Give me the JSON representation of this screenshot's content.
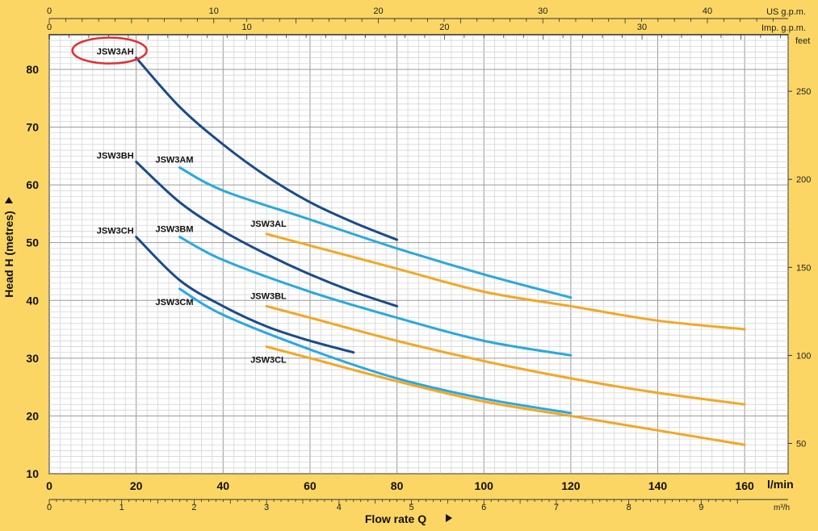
{
  "chart_data": {
    "type": "line",
    "title": "",
    "xlabel": "Flow rate Q",
    "ylabel": "Head H (metres)",
    "x_unit": "l/min",
    "xlim": [
      0,
      170
    ],
    "ylim": [
      10,
      86
    ],
    "x_ticks": [
      "0",
      "20",
      "40",
      "60",
      "80",
      "100",
      "120",
      "140",
      "160"
    ],
    "y_ticks": [
      "10",
      "20",
      "30",
      "40",
      "50",
      "60",
      "70",
      "80"
    ],
    "secondary_axes": {
      "us_gpm": {
        "label": "US g.p.m.",
        "ticks": [
          "0",
          "10",
          "20",
          "30",
          "40"
        ]
      },
      "imp_gpm": {
        "label": "Imp. g.p.m.",
        "ticks": [
          "0",
          "10",
          "20",
          "30"
        ]
      },
      "feet": {
        "label": "feet",
        "ticks": [
          "50",
          "100",
          "150",
          "200",
          "250"
        ]
      },
      "m3h": {
        "label": "m³/h",
        "ticks": [
          "0",
          "1",
          "2",
          "3",
          "4",
          "5",
          "6",
          "7",
          "8",
          "9"
        ]
      }
    },
    "grid": true,
    "colors": {
      "dark": "#1a4a8c",
      "light": "#29a8e0",
      "orange": "#f5a623",
      "highlight": "#e03030",
      "background": "#fbd664"
    },
    "series": [
      {
        "name": "JSW3AH",
        "color": "dark",
        "x": [
          20,
          30,
          40,
          50,
          60,
          70,
          80
        ],
        "y": [
          82,
          73.5,
          67,
          61.5,
          57,
          53.5,
          50.5
        ]
      },
      {
        "name": "JSW3BH",
        "color": "dark",
        "x": [
          20,
          30,
          40,
          50,
          60,
          70,
          80
        ],
        "y": [
          64,
          57,
          52,
          48,
          44.5,
          41.5,
          39
        ]
      },
      {
        "name": "JSW3CH",
        "color": "dark",
        "x": [
          20,
          30,
          40,
          50,
          60,
          70
        ],
        "y": [
          51,
          43.5,
          39,
          35.5,
          33,
          31
        ]
      },
      {
        "name": "JSW3AM",
        "color": "light",
        "x": [
          30,
          40,
          60,
          80,
          100,
          120
        ],
        "y": [
          63,
          59,
          54,
          49,
          44.5,
          40.5
        ]
      },
      {
        "name": "JSW3BM",
        "color": "light",
        "x": [
          30,
          40,
          60,
          80,
          100,
          120
        ],
        "y": [
          51,
          47,
          41.5,
          37,
          33,
          30.5
        ]
      },
      {
        "name": "JSW3CM",
        "color": "light",
        "x": [
          30,
          40,
          60,
          80,
          100,
          120
        ],
        "y": [
          42,
          37.5,
          31.5,
          26.5,
          23,
          20.5
        ]
      },
      {
        "name": "JSW3AL",
        "color": "orange",
        "x": [
          50,
          60,
          80,
          100,
          120,
          140,
          160
        ],
        "y": [
          51.5,
          49.5,
          45.5,
          41.5,
          39,
          36.5,
          35
        ]
      },
      {
        "name": "JSW3BL",
        "color": "orange",
        "x": [
          50,
          60,
          80,
          100,
          120,
          140,
          160
        ],
        "y": [
          39,
          37,
          33,
          29.5,
          26.5,
          24,
          22
        ]
      },
      {
        "name": "JSW3CL",
        "color": "orange",
        "x": [
          50,
          60,
          80,
          100,
          120,
          140,
          160
        ],
        "y": [
          32,
          30,
          26,
          22.5,
          20,
          17.5,
          15
        ]
      }
    ],
    "highlighted_series": "JSW3AH"
  }
}
